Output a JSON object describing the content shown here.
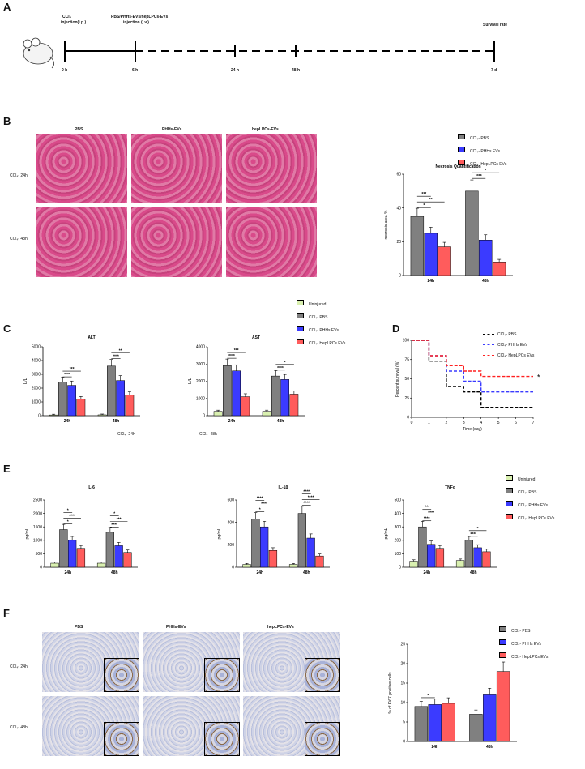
{
  "panels": {
    "A": "A",
    "B": "B",
    "C": "C",
    "D": "D",
    "E": "E",
    "F": "F"
  },
  "timeline": {
    "ccl4_label": "CCl₄",
    "ccl4_route": "injection(i.p.)",
    "ev_label": "PBS/PHHs-EVs/hepLPCs-EVs",
    "ev_route": "injection (i.v.)",
    "survival_label": "Survival rate",
    "ticks": [
      "0 h",
      "6 h",
      "24 h",
      "48 h",
      "7 d"
    ]
  },
  "he": {
    "columns": [
      "PBS",
      "PHHs-EVs",
      "hepLPCs-EVs"
    ],
    "rows": [
      "CCl₄- 24h",
      "CCl₄- 48h"
    ]
  },
  "ihc": {
    "columns": [
      "PBS",
      "PHHs-EVs",
      "hepLPCs-EVs"
    ],
    "rows": [
      "CCl₄- 24h",
      "CCl₄- 48h"
    ]
  },
  "legend_3": [
    "CCl₄- PBS",
    "CCl₄- PHHs EVs",
    "CCl₄- HepLPCs EVs"
  ],
  "legend_4": [
    "Uninjured",
    "CCl₄- PBS",
    "CCl₄- PHHs EVs",
    "CCl₄- HepLPCs EVs"
  ],
  "colors": {
    "uninjured": "#d9f0b0",
    "pbs": "#808080",
    "phh": "#3b3bff",
    "hep": "#ff5c5c"
  },
  "c_stray": [
    "CCl₄- 24h",
    "CCl₄- 48h"
  ],
  "chart_data": [
    {
      "id": "B",
      "type": "bar",
      "title": "Necrosis Quantification",
      "ylabel": "necrosis area %",
      "categories": [
        "24h",
        "48h"
      ],
      "ylim": [
        0,
        60
      ],
      "yticks": [
        0,
        20,
        40,
        60
      ],
      "series": [
        {
          "name": "CCl₄- PBS",
          "values": [
            35,
            50
          ]
        },
        {
          "name": "CCl₄- PHHs EVs",
          "values": [
            25,
            21
          ]
        },
        {
          "name": "CCl₄- HepLPCs EVs",
          "values": [
            17,
            8
          ]
        }
      ],
      "sig": [
        "*",
        "**",
        "***",
        "****",
        "*"
      ]
    },
    {
      "id": "C1",
      "type": "bar",
      "title": "ALT",
      "ylabel": "U/L",
      "categories": [
        "24h",
        "48h"
      ],
      "ylim": [
        0,
        5000
      ],
      "yticks": [
        0,
        1000,
        2000,
        3000,
        4000,
        5000
      ],
      "series": [
        {
          "name": "Uninjured",
          "values": [
            50,
            60
          ]
        },
        {
          "name": "CCl₄- PBS",
          "values": [
            2450,
            3600
          ]
        },
        {
          "name": "CCl₄- PHHs EVs",
          "values": [
            2200,
            2550
          ]
        },
        {
          "name": "CCl₄- HepLPCs EVs",
          "values": [
            1200,
            1500
          ]
        }
      ],
      "sig": [
        "****",
        "***",
        "****",
        "**"
      ]
    },
    {
      "id": "C2",
      "type": "bar",
      "title": "AST",
      "ylabel": "U/L",
      "categories": [
        "24h",
        "48h"
      ],
      "ylim": [
        0,
        4000
      ],
      "yticks": [
        0,
        1000,
        2000,
        3000,
        4000
      ],
      "series": [
        {
          "name": "Uninjured",
          "values": [
            250,
            250
          ]
        },
        {
          "name": "CCl₄- PBS",
          "values": [
            2900,
            2300
          ]
        },
        {
          "name": "CCl₄- PHHs EVs",
          "values": [
            2600,
            2100
          ]
        },
        {
          "name": "CCl₄- HepLPCs EVs",
          "values": [
            1100,
            1250
          ]
        }
      ],
      "sig": [
        "****",
        "***",
        "****",
        "*"
      ]
    },
    {
      "id": "D",
      "type": "line",
      "ylabel": "Percent survival (%)",
      "xlabel": "Time (day)",
      "xlim": [
        0,
        7
      ],
      "ylim": [
        0,
        100
      ],
      "xticks": [
        0,
        1,
        2,
        3,
        4,
        5,
        6,
        7
      ],
      "yticks": [
        0,
        25,
        50,
        75,
        100
      ],
      "series": [
        {
          "name": "CCl₄- PBS",
          "values": [
            [
              0,
              100
            ],
            [
              1,
              100
            ],
            [
              1,
              73
            ],
            [
              2,
              73
            ],
            [
              2,
              40
            ],
            [
              3,
              40
            ],
            [
              3,
              33
            ],
            [
              4,
              33
            ],
            [
              4,
              13
            ],
            [
              7,
              13
            ]
          ]
        },
        {
          "name": "CCl₄- PHHs EVs",
          "values": [
            [
              0,
              100
            ],
            [
              1,
              100
            ],
            [
              1,
              80
            ],
            [
              2,
              80
            ],
            [
              2,
              60
            ],
            [
              3,
              60
            ],
            [
              3,
              47
            ],
            [
              4,
              47
            ],
            [
              4,
              33
            ],
            [
              7,
              33
            ]
          ]
        },
        {
          "name": "CCl₄- HepLPCs EVs",
          "values": [
            [
              0,
              100
            ],
            [
              1,
              100
            ],
            [
              1,
              80
            ],
            [
              2,
              80
            ],
            [
              2,
              67
            ],
            [
              3,
              67
            ],
            [
              3,
              60
            ],
            [
              4,
              60
            ],
            [
              4,
              53
            ],
            [
              7,
              53
            ]
          ]
        }
      ],
      "sig": [
        "*"
      ]
    },
    {
      "id": "E1",
      "type": "bar",
      "title": "IL-6",
      "ylabel": "pg/mL",
      "categories": [
        "24h",
        "48h"
      ],
      "ylim": [
        0,
        2500
      ],
      "yticks": [
        0,
        500,
        1000,
        1500,
        2000,
        2500
      ],
      "series": [
        {
          "name": "Uninjured",
          "values": [
            150,
            150
          ]
        },
        {
          "name": "CCl₄- PBS",
          "values": [
            1400,
            1300
          ]
        },
        {
          "name": "CCl₄- PHHs EVs",
          "values": [
            1000,
            800
          ]
        },
        {
          "name": "CCl₄- HepLPCs EVs",
          "values": [
            700,
            550
          ]
        }
      ],
      "sig": [
        "*",
        "****",
        "*",
        "****",
        "***",
        "*"
      ]
    },
    {
      "id": "E2",
      "type": "bar",
      "title": "IL-1β",
      "ylabel": "pg/mL",
      "categories": [
        "24h",
        "48h"
      ],
      "ylim": [
        0,
        600
      ],
      "yticks": [
        0,
        200,
        400,
        600
      ],
      "series": [
        {
          "name": "Uninjured",
          "values": [
            25,
            25
          ]
        },
        {
          "name": "CCl₄- PBS",
          "values": [
            430,
            480
          ]
        },
        {
          "name": "CCl₄- PHHs EVs",
          "values": [
            360,
            260
          ]
        },
        {
          "name": "CCl₄- HepLPCs EVs",
          "values": [
            150,
            100
          ]
        }
      ],
      "sig": [
        "*",
        "****",
        "****",
        "****",
        "****",
        "****"
      ]
    },
    {
      "id": "E3",
      "type": "bar",
      "title": "TNFα",
      "ylabel": "pg/mL",
      "categories": [
        "24h",
        "48h"
      ],
      "ylim": [
        0,
        500
      ],
      "yticks": [
        0,
        100,
        200,
        300,
        400,
        500
      ],
      "series": [
        {
          "name": "Uninjured",
          "values": [
            45,
            50
          ]
        },
        {
          "name": "CCl₄- PBS",
          "values": [
            300,
            200
          ]
        },
        {
          "name": "CCl₄- PHHs EVs",
          "values": [
            170,
            145
          ]
        },
        {
          "name": "CCl₄- HepLPCs EVs",
          "values": [
            140,
            115
          ]
        }
      ],
      "sig": [
        "****",
        "****",
        "**",
        "****",
        "*"
      ]
    },
    {
      "id": "F",
      "type": "bar",
      "ylabel": "% of Ki67 positive cells",
      "categories": [
        "24h",
        "48h"
      ],
      "ylim": [
        0,
        25
      ],
      "yticks": [
        0,
        5,
        10,
        15,
        20,
        25
      ],
      "series": [
        {
          "name": "CCl₄- PBS",
          "values": [
            9,
            7
          ]
        },
        {
          "name": "CCl₄- PHHs EVs",
          "values": [
            9.5,
            12
          ]
        },
        {
          "name": "CCl₄- HepLPCs EVs",
          "values": [
            9.8,
            18
          ]
        }
      ],
      "sig": [
        "*"
      ]
    }
  ]
}
